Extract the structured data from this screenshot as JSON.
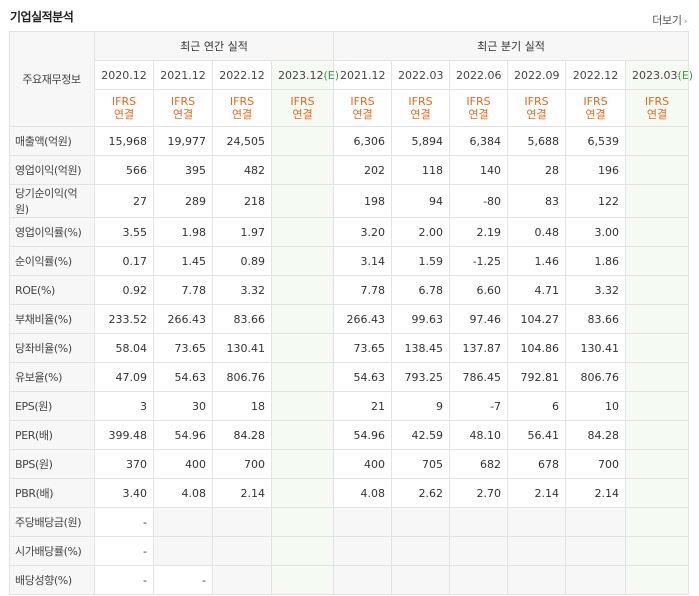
{
  "title": "기업실적분석",
  "more_label": "더보기",
  "header": {
    "row_label": "주요재무정보",
    "annual_title": "최근 연간 실적",
    "quarter_title": "최근 분기 실적",
    "annual_periods": [
      "2020.12",
      "2021.12",
      "2022.12",
      "2023.12"
    ],
    "quarter_periods": [
      "2021.12",
      "2022.03",
      "2022.06",
      "2022.09",
      "2022.12",
      "2023.03"
    ],
    "estimate_mark": "(E)",
    "ifrs": "IFRS",
    "consolidated": "연결"
  },
  "rows": [
    {
      "label": "매출액(억원)",
      "annual": [
        "15,968",
        "19,977",
        "24,505",
        ""
      ],
      "quarter": [
        "6,306",
        "5,894",
        "6,384",
        "5,688",
        "6,539",
        ""
      ]
    },
    {
      "label": "영업이익(억원)",
      "annual": [
        "566",
        "395",
        "482",
        ""
      ],
      "quarter": [
        "202",
        "118",
        "140",
        "28",
        "196",
        ""
      ]
    },
    {
      "label": "당기순이익(억원)",
      "annual": [
        "27",
        "289",
        "218",
        ""
      ],
      "quarter": [
        "198",
        "94",
        "-80",
        "83",
        "122",
        ""
      ]
    },
    {
      "label": "영업이익률(%)",
      "annual": [
        "3.55",
        "1.98",
        "1.97",
        ""
      ],
      "quarter": [
        "3.20",
        "2.00",
        "2.19",
        "0.48",
        "3.00",
        ""
      ]
    },
    {
      "label": "순이익률(%)",
      "annual": [
        "0.17",
        "1.45",
        "0.89",
        ""
      ],
      "quarter": [
        "3.14",
        "1.59",
        "-1.25",
        "1.46",
        "1.86",
        ""
      ]
    },
    {
      "label": "ROE(%)",
      "annual": [
        "0.92",
        "7.78",
        "3.32",
        ""
      ],
      "quarter": [
        "7.78",
        "6.78",
        "6.60",
        "4.71",
        "3.32",
        ""
      ]
    },
    {
      "label": "부채비율(%)",
      "annual": [
        "233.52",
        "266.43",
        "83.66",
        ""
      ],
      "quarter": [
        "266.43",
        "99.63",
        "97.46",
        "104.27",
        "83.66",
        ""
      ]
    },
    {
      "label": "당좌비율(%)",
      "annual": [
        "58.04",
        "73.65",
        "130.41",
        ""
      ],
      "quarter": [
        "73.65",
        "138.45",
        "137.87",
        "104.86",
        "130.41",
        ""
      ]
    },
    {
      "label": "유보율(%)",
      "annual": [
        "47.09",
        "54.63",
        "806.76",
        ""
      ],
      "quarter": [
        "54.63",
        "793.25",
        "786.45",
        "792.81",
        "806.76",
        ""
      ]
    },
    {
      "label": "EPS(원)",
      "annual": [
        "3",
        "30",
        "18",
        ""
      ],
      "quarter": [
        "21",
        "9",
        "-7",
        "6",
        "10",
        ""
      ]
    },
    {
      "label": "PER(배)",
      "annual": [
        "399.48",
        "54.96",
        "84.28",
        ""
      ],
      "quarter": [
        "54.96",
        "42.59",
        "48.10",
        "56.41",
        "84.28",
        ""
      ]
    },
    {
      "label": "BPS(원)",
      "annual": [
        "370",
        "400",
        "700",
        ""
      ],
      "quarter": [
        "400",
        "705",
        "682",
        "678",
        "700",
        ""
      ]
    },
    {
      "label": "PBR(배)",
      "annual": [
        "3.40",
        "4.08",
        "2.14",
        ""
      ],
      "quarter": [
        "4.08",
        "2.62",
        "2.70",
        "2.14",
        "2.14",
        ""
      ]
    },
    {
      "label": "주당배당금(원)",
      "annual": [
        "-",
        null,
        null,
        null
      ],
      "quarter": [
        null,
        null,
        null,
        null,
        null,
        null
      ]
    },
    {
      "label": "시가배당률(%)",
      "annual": [
        "-",
        null,
        null,
        null
      ],
      "quarter": [
        null,
        null,
        null,
        null,
        null,
        null
      ]
    },
    {
      "label": "배당성향(%)",
      "annual": [
        "-",
        "-",
        null,
        null
      ],
      "quarter": [
        null,
        null,
        null,
        null,
        null,
        null
      ]
    }
  ],
  "colors": {
    "ifrs": "#e06a1e",
    "negative": "#e0301e",
    "estimate": "#3a9b3a"
  }
}
